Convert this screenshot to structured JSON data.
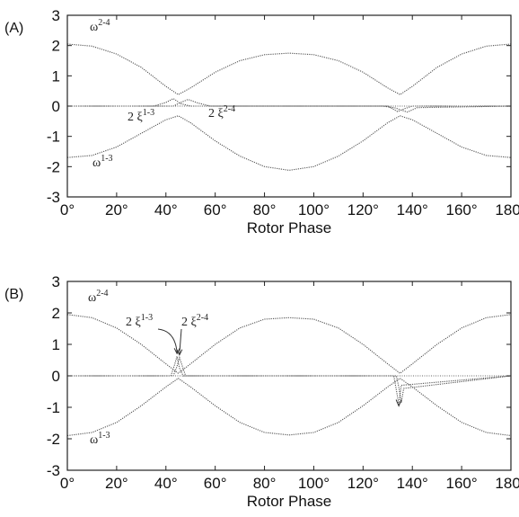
{
  "chart_data": [
    {
      "type": "line",
      "panel_label": "(A)",
      "xlabel": "Rotor Phase",
      "ylabel": "",
      "xlim": [
        0,
        180
      ],
      "ylim": [
        -3,
        3
      ],
      "x_ticks": [
        "0°",
        "20°",
        "40°",
        "60°",
        "80°",
        "100°",
        "120°",
        "140°",
        "160°",
        "180°"
      ],
      "y_ticks": [
        "3",
        "2",
        "1",
        "0",
        "-1",
        "-2",
        "-3"
      ],
      "annotations": {
        "w24_base": "ω",
        "w24_sup": "2-4",
        "w13_base": "ω",
        "w13_sup": "1-3",
        "xi13_base": "2 ξ",
        "xi13_sup": "1-3",
        "xi24_base": "2 ξ",
        "xi24_sup": "2-4"
      },
      "series": [
        {
          "x": [
            0,
            10,
            20,
            30,
            40,
            45,
            50,
            60,
            70,
            80,
            90,
            100,
            110,
            120,
            130,
            135,
            140,
            150,
            160,
            170,
            180
          ],
          "values": [
            2.05,
            1.98,
            1.72,
            1.28,
            0.65,
            0.38,
            0.6,
            1.12,
            1.5,
            1.7,
            1.75,
            1.7,
            1.5,
            1.12,
            0.6,
            0.38,
            0.65,
            1.28,
            1.72,
            1.98,
            2.05
          ]
        },
        {
          "x": [
            0,
            10,
            20,
            30,
            40,
            45,
            50,
            60,
            70,
            80,
            90,
            100,
            110,
            120,
            130,
            135,
            140,
            150,
            160,
            170,
            180
          ],
          "values": [
            -1.7,
            -1.63,
            -1.35,
            -0.9,
            -0.45,
            -0.32,
            -0.55,
            -1.15,
            -1.65,
            -2.0,
            -2.12,
            -2.0,
            -1.65,
            -1.15,
            -0.55,
            -0.32,
            -0.45,
            -0.9,
            -1.35,
            -1.63,
            -1.7
          ]
        },
        {
          "x": [
            0,
            35,
            40,
            43,
            46,
            50,
            130,
            134,
            137,
            140,
            180
          ],
          "values": [
            0,
            0,
            0.12,
            0.25,
            0.08,
            0,
            0,
            -0.18,
            -0.08,
            0,
            0
          ]
        },
        {
          "x": [
            0,
            43,
            46,
            49,
            53,
            58,
            128,
            133,
            138,
            142,
            180
          ],
          "values": [
            0,
            0,
            0.12,
            0.22,
            0.1,
            0,
            0,
            -0.06,
            -0.2,
            -0.05,
            0
          ]
        }
      ]
    },
    {
      "type": "line",
      "panel_label": "(B)",
      "xlabel": "Rotor Phase",
      "ylabel": "",
      "xlim": [
        0,
        180
      ],
      "ylim": [
        -3,
        3
      ],
      "x_ticks": [
        "0°",
        "20°",
        "40°",
        "60°",
        "80°",
        "100°",
        "120°",
        "140°",
        "160°",
        "180°"
      ],
      "y_ticks": [
        "3",
        "2",
        "1",
        "0",
        "-1",
        "-2",
        "-3"
      ],
      "annotations": {
        "w24_base": "ω",
        "w24_sup": "2-4",
        "w13_base": "ω",
        "w13_sup": "1-3",
        "xi13_base": "2 ξ",
        "xi13_sup": "1-3",
        "xi24_base": "2 ξ",
        "xi24_sup": "2-4"
      },
      "series": [
        {
          "x": [
            0,
            10,
            20,
            30,
            40,
            45,
            50,
            60,
            70,
            80,
            90,
            100,
            110,
            120,
            130,
            135,
            140,
            150,
            160,
            170,
            180
          ],
          "values": [
            1.95,
            1.85,
            1.52,
            1.0,
            0.38,
            0.08,
            0.38,
            1.0,
            1.52,
            1.8,
            1.85,
            1.8,
            1.52,
            1.0,
            0.38,
            0.08,
            0.38,
            1.0,
            1.52,
            1.85,
            1.95
          ]
        },
        {
          "x": [
            0,
            10,
            20,
            30,
            40,
            45,
            50,
            60,
            70,
            80,
            90,
            100,
            110,
            120,
            130,
            135,
            140,
            150,
            160,
            170,
            180
          ],
          "values": [
            -1.9,
            -1.8,
            -1.48,
            -0.95,
            -0.35,
            -0.08,
            -0.35,
            -0.95,
            -1.48,
            -1.8,
            -1.88,
            -1.8,
            -1.48,
            -0.95,
            -0.35,
            -0.08,
            -0.35,
            -0.95,
            -1.48,
            -1.8,
            -1.9
          ]
        },
        {
          "x": [
            0,
            42,
            43.5,
            44.5,
            45.5,
            47,
            132.5,
            133.5,
            134.5,
            135.5,
            180
          ],
          "values": [
            0,
            0,
            0.35,
            0.62,
            0.25,
            0,
            0,
            -0.45,
            -0.9,
            -0.3,
            0
          ]
        },
        {
          "x": [
            0,
            43,
            44.5,
            45.5,
            46.5,
            48,
            133.5,
            134.5,
            135.5,
            136.5,
            180
          ],
          "values": [
            0,
            0,
            0.3,
            0.58,
            0.35,
            0,
            0,
            -0.35,
            -0.85,
            -0.4,
            0
          ]
        }
      ]
    }
  ]
}
